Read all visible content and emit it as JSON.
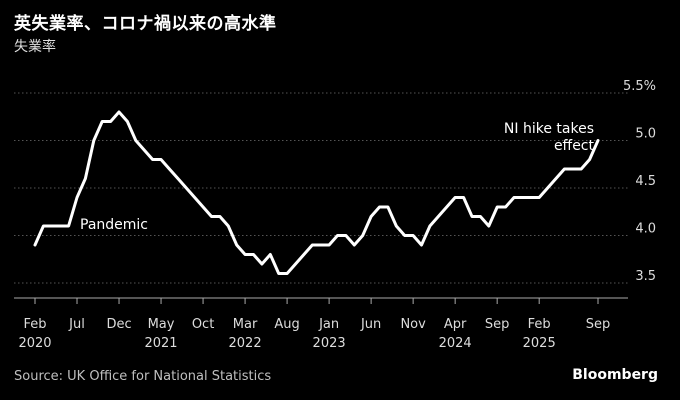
{
  "header": {
    "title": "英失業率、コロナ禍以来の高水準",
    "subtitle": "失業率"
  },
  "footer": {
    "source": "Source: UK Office for National Statistics",
    "brand": "Bloomberg"
  },
  "colors": {
    "background": "#000000",
    "line": "#ffffff",
    "grid": "#555555",
    "text": "#ffffff"
  },
  "chart_data": {
    "type": "line",
    "title": "英失業率、コロナ禍以来の高水準",
    "ylabel": "失業率",
    "ylim": [
      3.35,
      5.55
    ],
    "yticks": [
      3.5,
      4.0,
      4.5,
      5.0,
      5.5
    ],
    "ytick_labels": [
      "3.5",
      "4.0",
      "4.5",
      "5.0",
      "5.5%"
    ],
    "grid": true,
    "y_axis_side": "right",
    "xticks": [
      {
        "date": "2020-02",
        "label": "Feb",
        "year": "2020"
      },
      {
        "date": "2020-07",
        "label": "Jul",
        "year": ""
      },
      {
        "date": "2020-12",
        "label": "Dec",
        "year": ""
      },
      {
        "date": "2021-05",
        "label": "May",
        "year": "2021"
      },
      {
        "date": "2021-10",
        "label": "Oct",
        "year": ""
      },
      {
        "date": "2022-03",
        "label": "Mar",
        "year": "2022"
      },
      {
        "date": "2022-08",
        "label": "Aug",
        "year": ""
      },
      {
        "date": "2023-01",
        "label": "Jan",
        "year": "2023"
      },
      {
        "date": "2023-06",
        "label": "Jun",
        "year": ""
      },
      {
        "date": "2023-11",
        "label": "Nov",
        "year": ""
      },
      {
        "date": "2024-04",
        "label": "Apr",
        "year": "2024"
      },
      {
        "date": "2024-09",
        "label": "Sep",
        "year": ""
      },
      {
        "date": "2025-02",
        "label": "Feb",
        "year": "2025"
      },
      {
        "date": "2025-09",
        "label": "Sep",
        "year": ""
      }
    ],
    "series": [
      {
        "name": "",
        "x": [
          "2020-02",
          "2020-03",
          "2020-04",
          "2020-05",
          "2020-06",
          "2020-07",
          "2020-08",
          "2020-09",
          "2020-10",
          "2020-11",
          "2020-12",
          "2021-01",
          "2021-02",
          "2021-03",
          "2021-04",
          "2021-05",
          "2021-06",
          "2021-07",
          "2021-08",
          "2021-09",
          "2021-10",
          "2021-11",
          "2021-12",
          "2022-01",
          "2022-02",
          "2022-03",
          "2022-04",
          "2022-05",
          "2022-06",
          "2022-07",
          "2022-08",
          "2022-09",
          "2022-10",
          "2022-11",
          "2022-12",
          "2023-01",
          "2023-02",
          "2023-03",
          "2023-04",
          "2023-05",
          "2023-06",
          "2023-07",
          "2023-08",
          "2023-09",
          "2023-10",
          "2023-11",
          "2023-12",
          "2024-01",
          "2024-02",
          "2024-03",
          "2024-04",
          "2024-05",
          "2024-06",
          "2024-07",
          "2024-08",
          "2024-09",
          "2024-10",
          "2024-11",
          "2024-12",
          "2025-01",
          "2025-02",
          "2025-03",
          "2025-04",
          "2025-05",
          "2025-06",
          "2025-07",
          "2025-08",
          "2025-09"
        ],
        "y": [
          3.9,
          4.1,
          4.1,
          4.1,
          4.1,
          4.4,
          4.6,
          5.0,
          5.2,
          5.2,
          5.3,
          5.2,
          5.0,
          4.9,
          4.8,
          4.8,
          4.7,
          4.6,
          4.5,
          4.4,
          4.3,
          4.2,
          4.2,
          4.1,
          3.9,
          3.8,
          3.8,
          3.7,
          3.8,
          3.6,
          3.6,
          3.7,
          3.8,
          3.9,
          3.9,
          3.9,
          4.0,
          4.0,
          3.9,
          4.0,
          4.2,
          4.3,
          4.3,
          4.1,
          4.0,
          4.0,
          3.9,
          4.1,
          4.2,
          4.3,
          4.4,
          4.4,
          4.2,
          4.2,
          4.1,
          4.3,
          4.3,
          4.4,
          4.4,
          4.4,
          4.4,
          4.5,
          4.6,
          4.7,
          4.7,
          4.7,
          4.8,
          5.0
        ]
      }
    ],
    "annotations": [
      {
        "text": "Pandemic",
        "date": "2021-01",
        "value": 4.15
      },
      {
        "text": "NI hike takes\neffect",
        "date": "2025-09",
        "value": 5.0
      }
    ]
  }
}
